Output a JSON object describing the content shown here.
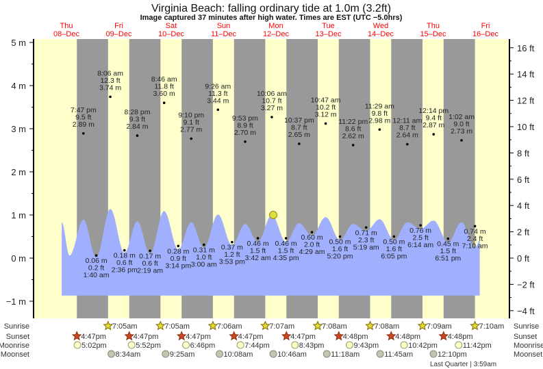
{
  "title": "Virginia Beach: falling  ordinary tide at 1.0m (3.2ft)",
  "subtitle": "Image captured 37 minutes after high water. Times are EST (UTC −5.0hrs)",
  "chart_data": {
    "type": "area",
    "title": "Virginia Beach: falling  ordinary tide at 1.0m (3.2ft)",
    "xlabel": "",
    "ylabel_left": "m",
    "ylabel_right": "ft",
    "x_unit": "days from Thu 08-Dec 00:00 EST",
    "xlim": [
      -0.114,
      8.945
    ],
    "ylim": [
      -1.4,
      5.08
    ],
    "left_ticks": [
      "5 m",
      "4 m",
      "3 m",
      "2 m",
      "1 m",
      "0 m",
      "−1 m"
    ],
    "left_tick_values": [
      5,
      4,
      3,
      2,
      1,
      0,
      -1
    ],
    "right_ticks": [
      "16 ft",
      "14 ft",
      "12 ft",
      "10 ft",
      "8 ft",
      "6 ft",
      "4 ft",
      "2 ft",
      "0 ft",
      "−2 ft",
      "−4 ft"
    ],
    "right_tick_values": [
      16,
      14,
      12,
      10,
      8,
      6,
      4,
      2,
      0,
      -2,
      -4
    ],
    "days": [
      {
        "dow": "Thu",
        "date": "08–Dec"
      },
      {
        "dow": "Fri",
        "date": "09–Dec"
      },
      {
        "dow": "Sat",
        "date": "10–Dec"
      },
      {
        "dow": "Sun",
        "date": "11–Dec"
      },
      {
        "dow": "Mon",
        "date": "12–Dec"
      },
      {
        "dow": "Tue",
        "date": "13–Dec"
      },
      {
        "dow": "Wed",
        "date": "14–Dec"
      },
      {
        "dow": "Thu",
        "date": "15–Dec"
      },
      {
        "dow": "Fri",
        "date": "16–Dec"
      }
    ],
    "highs": [
      {
        "d": 0,
        "time": "7:47 pm",
        "ft": "9.5 ft",
        "m": "2.89 m",
        "v": 2.89
      },
      {
        "d": 1,
        "time": "8:06 am",
        "ft": "12.3 ft",
        "m": "3.74 m",
        "v": 3.74
      },
      {
        "d": 1,
        "time": "8:28 pm",
        "ft": "9.3 ft",
        "m": "2.84 m",
        "v": 2.84
      },
      {
        "d": 2,
        "time": "8:46 am",
        "ft": "11.8 ft",
        "m": "3.60 m",
        "v": 3.6
      },
      {
        "d": 2,
        "time": "9:10 pm",
        "ft": "9.1 ft",
        "m": "2.77 m",
        "v": 2.77
      },
      {
        "d": 3,
        "time": "9:26 am",
        "ft": "11.3 ft",
        "m": "3.44 m",
        "v": 3.44
      },
      {
        "d": 3,
        "time": "9:53 pm",
        "ft": "8.9 ft",
        "m": "2.70 m",
        "v": 2.7
      },
      {
        "d": 4,
        "time": "10:06 am",
        "ft": "10.7 ft",
        "m": "3.27 m",
        "v": 3.27
      },
      {
        "d": 4,
        "time": "10:37 pm",
        "ft": "8.7 ft",
        "m": "2.65 m",
        "v": 2.65
      },
      {
        "d": 5,
        "time": "10:47 am",
        "ft": "10.2 ft",
        "m": "3.12 m",
        "v": 3.12
      },
      {
        "d": 5,
        "time": "11:22 pm",
        "ft": "8.6 ft",
        "m": "2.62 m",
        "v": 2.62
      },
      {
        "d": 6,
        "time": "11:29 am",
        "ft": "9.8 ft",
        "m": "2.98 m",
        "v": 2.98
      },
      {
        "d": 7,
        "time": "12:11 am",
        "ft": "8.7 ft",
        "m": "2.64 m",
        "v": 2.64
      },
      {
        "d": 7,
        "time": "12:14 pm",
        "ft": "9.4 ft",
        "m": "2.87 m",
        "v": 2.87
      },
      {
        "d": 8,
        "time": "1:02 am",
        "ft": "9.0 ft",
        "m": "2.73 m",
        "v": 2.73
      }
    ],
    "lows": [
      {
        "d": 1,
        "time": "1:40 am",
        "ft": "0.2 ft",
        "m": "0.06 m",
        "v": 0.06
      },
      {
        "d": 1,
        "time": "2:36 pm",
        "ft": "0.6 ft",
        "m": "0.18 m",
        "v": 0.18
      },
      {
        "d": 2,
        "time": "2:19 am",
        "ft": "0.6 ft",
        "m": "0.17 m",
        "v": 0.17
      },
      {
        "d": 2,
        "time": "3:14 pm",
        "ft": "0.9 ft",
        "m": "0.28 m",
        "v": 0.28
      },
      {
        "d": 3,
        "time": "3:00 am",
        "ft": "1.0 ft",
        "m": "0.31 m",
        "v": 0.31
      },
      {
        "d": 3,
        "time": "3:53 pm",
        "ft": "1.2 ft",
        "m": "0.37 m",
        "v": 0.37
      },
      {
        "d": 4,
        "time": "3:42 am",
        "ft": "1.5 ft",
        "m": "0.46 m",
        "v": 0.46
      },
      {
        "d": 4,
        "time": "4:35 pm",
        "ft": "1.5 ft",
        "m": "0.46 m",
        "v": 0.46
      },
      {
        "d": 5,
        "time": "4:29 am",
        "ft": "2.0 ft",
        "m": "0.60 m",
        "v": 0.6
      },
      {
        "d": 5,
        "time": "5:20 pm",
        "ft": "1.6 ft",
        "m": "0.50 m",
        "v": 0.5
      },
      {
        "d": 6,
        "time": "5:19 am",
        "ft": "2.3 ft",
        "m": "0.71 m",
        "v": 0.71
      },
      {
        "d": 6,
        "time": "6:05 pm",
        "ft": "1.6 ft",
        "m": "0.50 m",
        "v": 0.5
      },
      {
        "d": 7,
        "time": "6:14 am",
        "ft": "2.5 ft",
        "m": "0.76 m",
        "v": 0.76
      },
      {
        "d": 7,
        "time": "6:51 pm",
        "ft": "1.5 ft",
        "m": "0.45 m",
        "v": 0.45
      },
      {
        "d": 8,
        "time": "7:10 am",
        "ft": "2.4 ft",
        "m": "0.74 m",
        "v": 0.74
      }
    ],
    "tide_curve": [
      [
        0.41,
        0.83
      ],
      [
        0.56,
        0.06
      ],
      [
        0.824,
        0.89
      ],
      [
        1.069,
        0.02
      ],
      [
        1.338,
        1.14
      ],
      [
        1.608,
        0.12
      ],
      [
        1.853,
        0.85
      ],
      [
        2.097,
        0.1
      ],
      [
        2.365,
        1.09
      ],
      [
        2.635,
        0.2
      ],
      [
        2.882,
        0.83
      ],
      [
        3.125,
        0.24
      ],
      [
        3.393,
        1.01
      ],
      [
        3.662,
        0.3
      ],
      [
        3.912,
        0.79
      ],
      [
        4.154,
        0.38
      ],
      [
        4.421,
        1.0
      ],
      [
        4.691,
        0.38
      ],
      [
        4.942,
        0.81
      ],
      [
        5.187,
        0.52
      ],
      [
        5.449,
        0.95
      ],
      [
        5.722,
        0.42
      ],
      [
        5.974,
        0.79
      ],
      [
        6.222,
        0.63
      ],
      [
        6.479,
        0.9
      ],
      [
        6.754,
        0.42
      ],
      [
        7.008,
        0.83
      ],
      [
        7.26,
        0.68
      ],
      [
        7.51,
        0.87
      ],
      [
        7.785,
        0.37
      ],
      [
        8.043,
        0.83
      ],
      [
        8.299,
        0.24
      ],
      [
        8.39,
        0.4
      ]
    ],
    "tide_fill_floor_m": -0.87,
    "current": {
      "day": 4.448,
      "height_m": 1.0
    },
    "colors": {
      "day": "#ffffcc",
      "night": "#999999",
      "water": "#a0b0ff",
      "current": "#dddd44",
      "daylabel": "#ff0000"
    }
  },
  "astro": {
    "labels": {
      "sunrise": "Sunrise",
      "sunset": "Sunset",
      "moonrise": "Moonrise",
      "moonset": "Moonset"
    },
    "sunrise": [
      {
        "d": 1,
        "t": "7:05am"
      },
      {
        "d": 2,
        "t": "7:05am"
      },
      {
        "d": 3,
        "t": "7:06am"
      },
      {
        "d": 4,
        "t": "7:07am"
      },
      {
        "d": 5,
        "t": "7:08am"
      },
      {
        "d": 6,
        "t": "7:08am"
      },
      {
        "d": 7,
        "t": "7:09am"
      },
      {
        "d": 8,
        "t": "7:10am"
      }
    ],
    "sunset": [
      {
        "d": 0,
        "t": "4:47pm"
      },
      {
        "d": 1,
        "t": "4:47pm"
      },
      {
        "d": 2,
        "t": "4:47pm"
      },
      {
        "d": 3,
        "t": "4:47pm"
      },
      {
        "d": 4,
        "t": "4:47pm"
      },
      {
        "d": 5,
        "t": "4:48pm"
      },
      {
        "d": 6,
        "t": "4:48pm"
      },
      {
        "d": 7,
        "t": "4:48pm"
      }
    ],
    "moonrise": [
      {
        "d": 0,
        "t": "5:02pm"
      },
      {
        "d": 1,
        "t": "5:52pm"
      },
      {
        "d": 2,
        "t": "6:46pm"
      },
      {
        "d": 3,
        "t": "7:44pm"
      },
      {
        "d": 4,
        "t": "8:43pm"
      },
      {
        "d": 5,
        "t": "9:43pm"
      },
      {
        "d": 6,
        "t": "10:42pm"
      },
      {
        "d": 7,
        "t": "11:42pm"
      }
    ],
    "moonset": [
      {
        "d": 1,
        "t": "8:34am"
      },
      {
        "d": 2,
        "t": "9:25am"
      },
      {
        "d": 3,
        "t": "10:08am"
      },
      {
        "d": 4,
        "t": "10:46am"
      },
      {
        "d": 5,
        "t": "11:18am"
      },
      {
        "d": 6,
        "t": "11:45am"
      },
      {
        "d": 7,
        "t": "12:10pm"
      }
    ],
    "phase": "Last Quarter | 3:59am"
  }
}
